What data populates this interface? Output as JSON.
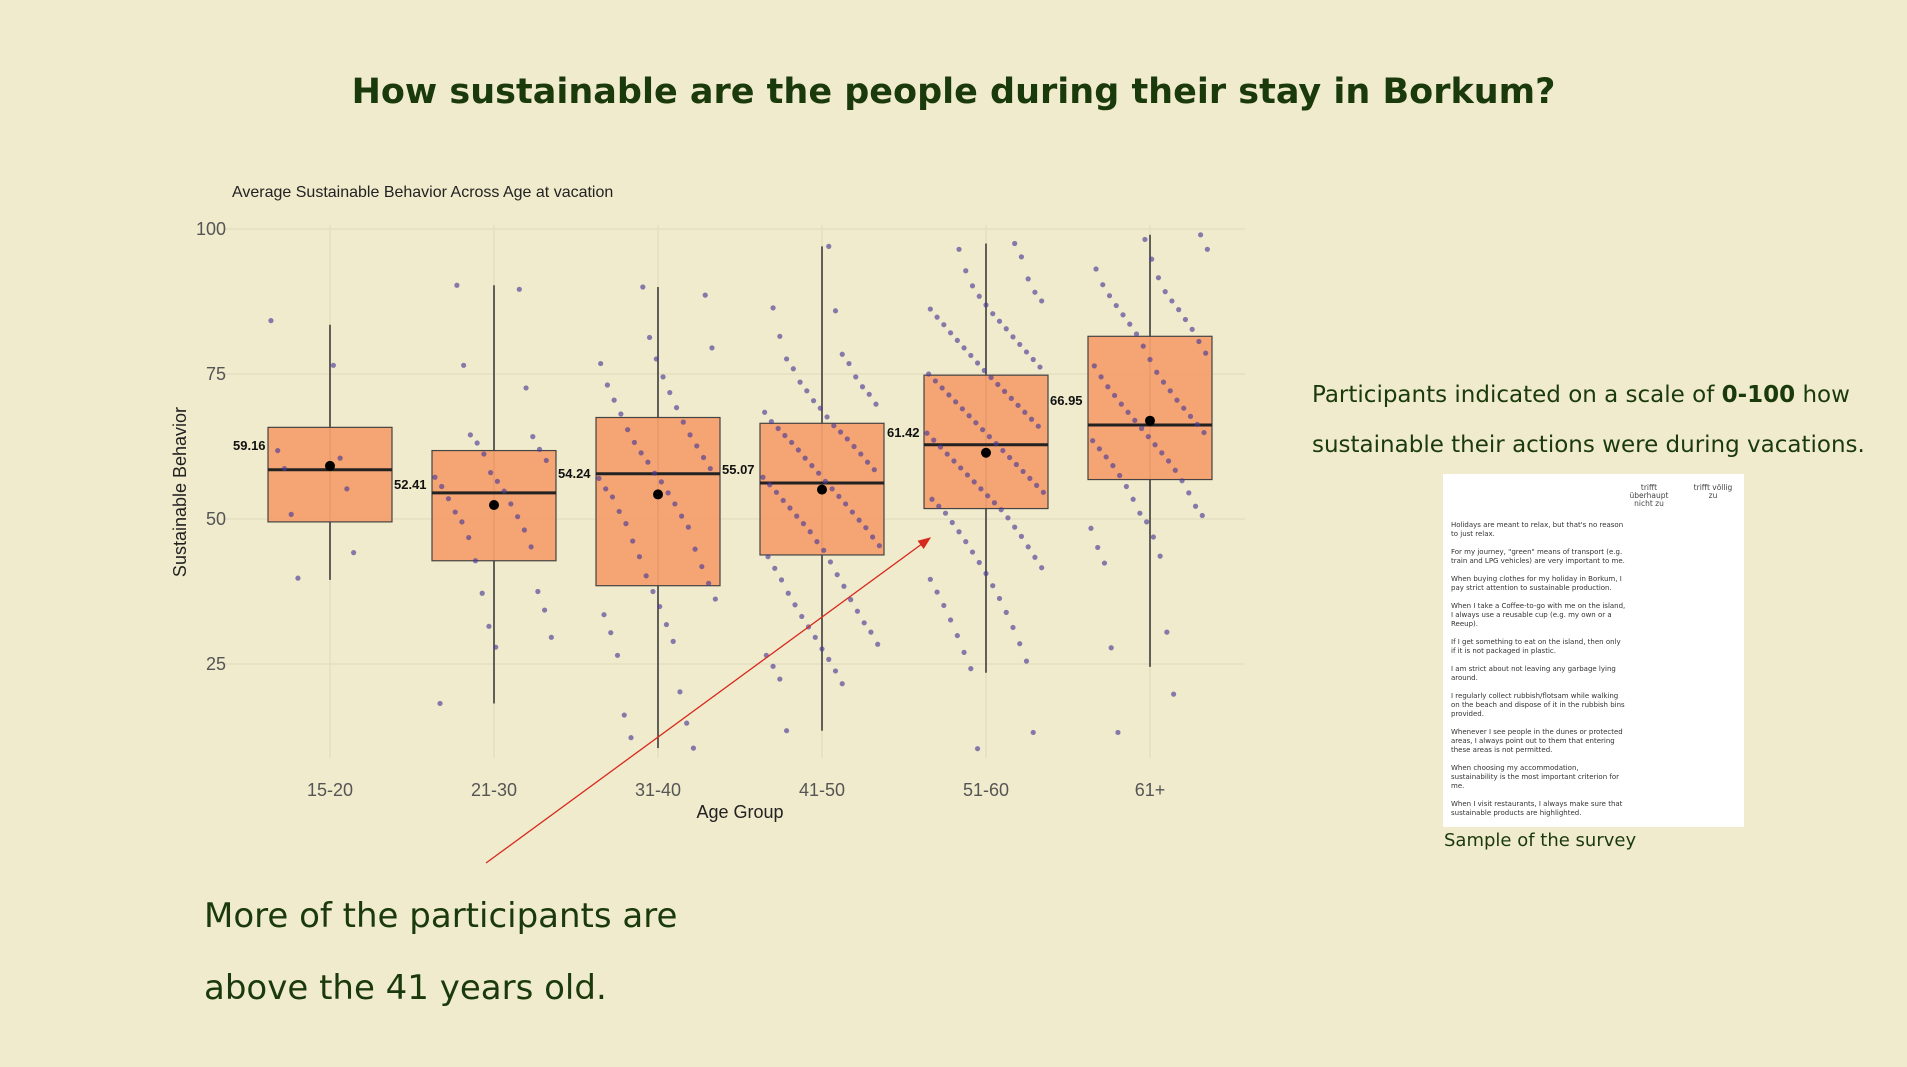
{
  "slide": {
    "title": "How sustainable are the people during their stay in Borkum?",
    "scale_note_prefix": "Participants indicated on a scale of ",
    "scale_note_bold": "0-100",
    "scale_note_suffix": " how sustainable their actions were during vacations.",
    "conclusion_line1": "More of the participants are",
    "conclusion_line2": "above the 41 years old.",
    "colors": {
      "background": "#f0ebcc",
      "heading": "#1b3a0c",
      "box_fill": "#f4a06e",
      "point": "#4a3c96",
      "arrow": "#d62a1e"
    }
  },
  "survey": {
    "col_header_1": "trifft überhaupt nicht zu",
    "col_header_2": "trifft völlig zu",
    "items": [
      "Holidays are meant to relax, but that's no reason to just relax.",
      "For my journey, \"green\" means of transport (e.g. train and LPG vehicles) are very important to me.",
      "When buying clothes for my holiday in Borkum, I pay strict attention to sustainable production.",
      "When I take a Coffee-to-go with me on the island, I always use a reusable cup (e.g. my own or a Reeup).",
      "If I get something to eat on the island, then only if it is not packaged in plastic.",
      "I am strict about not leaving any garbage lying around.",
      "I regularly collect rubbish/flotsam while walking on the beach and dispose of it in the rubbish bins provided.",
      "Whenever I see people in the dunes or protected areas, I always point out to them that entering these areas is not permitted.",
      "When choosing my accommodation, sustainability is the most important criterion for me.",
      "When I visit restaurants, I always make sure that sustainable products are highlighted."
    ],
    "caption": "Sample of the survey"
  },
  "chart_data": {
    "type": "box",
    "title": "Average Sustainable Behavior Across Age at vacation",
    "xlabel": "Age Group",
    "ylabel": "Sustainable Behavior",
    "y_ticks": [
      25,
      50,
      75,
      100
    ],
    "ylim": [
      9,
      100
    ],
    "grid": true,
    "groups": [
      {
        "name": "15-20",
        "whisker_low": 39.5,
        "q1": 49.5,
        "median": 58.5,
        "q3": 65.8,
        "whisker_high": 83.5,
        "mean": 59.16,
        "mean_label": "59.16",
        "points": [
          84.2,
          76.5,
          61.8,
          60.5,
          58.7,
          55.2,
          50.8,
          44.2,
          39.8
        ]
      },
      {
        "name": "21-30",
        "whisker_low": 18.2,
        "q1": 42.8,
        "median": 54.5,
        "q3": 61.8,
        "whisker_high": 90.3,
        "mean": 52.41,
        "mean_label": "52.41",
        "points": [
          90.3,
          89.6,
          76.5,
          72.6,
          64.5,
          64.2,
          63.1,
          62.0,
          61.2,
          60.1,
          58.0,
          57.2,
          56.5,
          55.6,
          54.8,
          53.5,
          52.6,
          51.2,
          50.4,
          49.5,
          48.1,
          46.8,
          45.2,
          42.8,
          37.5,
          37.2,
          34.3,
          31.5,
          29.6,
          27.9,
          18.2
        ]
      },
      {
        "name": "31-40",
        "whisker_low": 10.5,
        "q1": 38.5,
        "median": 57.8,
        "q3": 67.5,
        "whisker_high": 90.0,
        "mean": 54.24,
        "mean_label": "54.24",
        "points": [
          90.0,
          88.6,
          81.3,
          79.5,
          77.6,
          76.8,
          74.5,
          73.1,
          71.8,
          70.5,
          69.2,
          68.1,
          66.7,
          65.4,
          64.5,
          63.2,
          62.6,
          61.4,
          60.6,
          59.8,
          58.7,
          57.9,
          57.0,
          56.4,
          55.2,
          54.5,
          53.8,
          52.6,
          51.3,
          50.5,
          49.2,
          48.6,
          46.2,
          44.8,
          43.5,
          41.8,
          40.2,
          38.9,
          37.5,
          36.2,
          34.9,
          33.5,
          31.8,
          30.4,
          28.9,
          26.5,
          20.2,
          16.2,
          14.8,
          12.3,
          10.5
        ]
      },
      {
        "name": "41-50",
        "whisker_low": 13.5,
        "q1": 43.8,
        "median": 56.2,
        "q3": 66.5,
        "whisker_high": 97.0,
        "mean": 55.07,
        "mean_label": "55.07",
        "points": [
          97.0,
          86.4,
          85.9,
          81.5,
          78.4,
          77.6,
          76.8,
          75.9,
          74.5,
          73.6,
          72.8,
          72.1,
          71.5,
          70.4,
          69.8,
          69.1,
          68.4,
          67.6,
          66.8,
          66.1,
          65.6,
          65.0,
          64.4,
          63.8,
          63.2,
          62.5,
          61.9,
          61.2,
          60.5,
          59.8,
          59.2,
          58.5,
          57.9,
          57.2,
          56.5,
          55.9,
          55.2,
          54.6,
          53.9,
          53.2,
          52.6,
          51.9,
          51.2,
          50.5,
          49.8,
          49.2,
          48.5,
          47.8,
          46.9,
          46.1,
          45.4,
          44.6,
          43.5,
          42.6,
          41.5,
          40.4,
          39.5,
          38.4,
          37.2,
          36.1,
          35.2,
          34.1,
          33.2,
          32.1,
          31.4,
          30.5,
          29.6,
          28.4,
          27.6,
          26.5,
          25.8,
          24.6,
          23.8,
          22.4,
          21.6,
          13.5
        ]
      },
      {
        "name": "51-60",
        "whisker_low": 23.5,
        "q1": 51.8,
        "median": 62.8,
        "q3": 74.8,
        "whisker_high": 97.5,
        "mean": 61.42,
        "mean_label": "61.42",
        "points": [
          97.5,
          96.5,
          95.2,
          92.8,
          91.4,
          90.2,
          89.1,
          88.4,
          87.6,
          86.9,
          86.2,
          85.4,
          84.8,
          84.1,
          83.5,
          82.8,
          82.1,
          81.4,
          80.8,
          80.1,
          79.5,
          78.8,
          78.2,
          77.5,
          76.9,
          76.2,
          75.6,
          75.0,
          74.4,
          73.8,
          73.2,
          72.6,
          72.0,
          71.4,
          70.8,
          70.2,
          69.6,
          69.0,
          68.4,
          67.8,
          67.2,
          66.6,
          66.0,
          65.4,
          64.8,
          64.2,
          63.6,
          63.0,
          62.4,
          61.8,
          61.2,
          60.6,
          60.0,
          59.4,
          58.8,
          58.2,
          57.6,
          57.0,
          56.4,
          55.8,
          55.2,
          54.6,
          54.0,
          53.4,
          52.8,
          52.2,
          51.6,
          51.0,
          50.2,
          49.4,
          48.6,
          47.8,
          47.0,
          46.1,
          45.2,
          44.3,
          43.4,
          42.5,
          41.6,
          40.6,
          39.6,
          38.5,
          37.4,
          36.3,
          35.1,
          33.9,
          32.6,
          31.3,
          29.9,
          28.5,
          27.0,
          25.5,
          24.2,
          13.2,
          10.4
        ]
      },
      {
        "name": "61+",
        "whisker_low": 24.5,
        "q1": 56.8,
        "median": 66.2,
        "q3": 81.5,
        "whisker_high": 99.0,
        "mean": 66.95,
        "mean_label": "66.95",
        "points": [
          99.0,
          98.2,
          96.5,
          94.8,
          93.1,
          91.6,
          90.4,
          89.2,
          88.5,
          87.6,
          86.8,
          86.1,
          85.2,
          84.4,
          83.6,
          82.7,
          81.9,
          80.6,
          79.8,
          78.6,
          77.5,
          76.4,
          75.3,
          74.5,
          73.6,
          72.8,
          72.1,
          71.3,
          70.5,
          69.8,
          69.1,
          68.4,
          67.7,
          67.0,
          66.3,
          65.6,
          64.9,
          64.2,
          63.5,
          62.8,
          62.1,
          61.4,
          60.7,
          60.0,
          59.2,
          58.4,
          57.5,
          56.6,
          55.6,
          54.5,
          53.4,
          52.2,
          51.0,
          50.6,
          49.5,
          48.4,
          46.9,
          45.1,
          43.6,
          42.4,
          30.5,
          27.8,
          19.8,
          13.2
        ]
      }
    ]
  }
}
